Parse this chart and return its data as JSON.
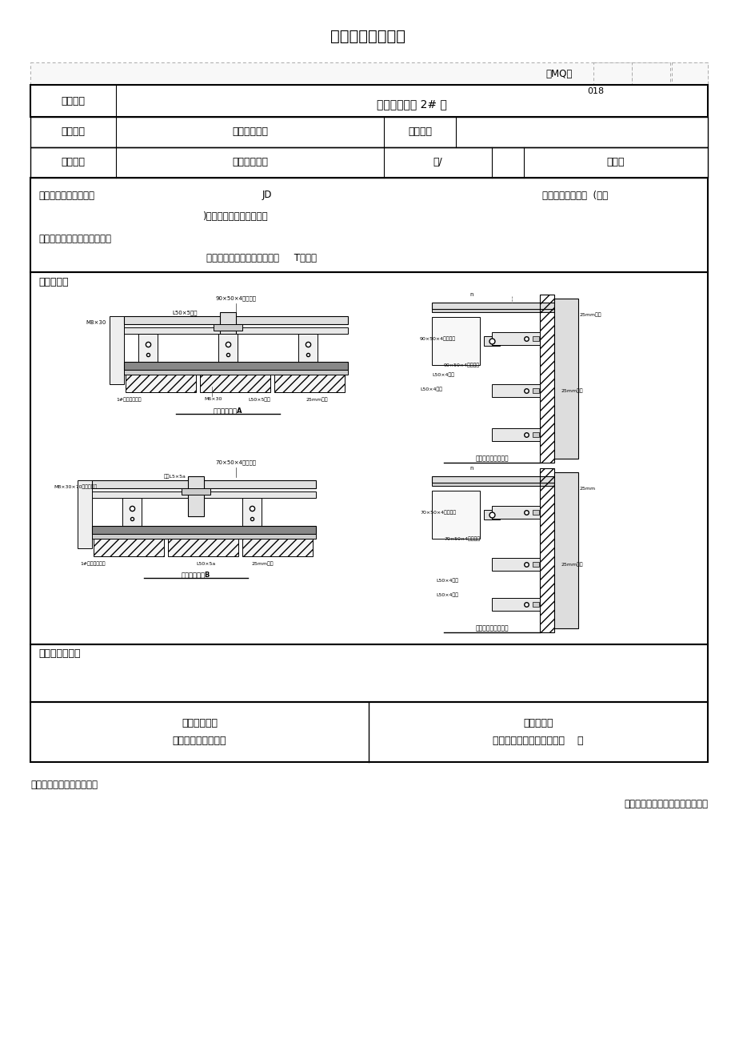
{
  "title": "隐蔽工程验收记录",
  "doc_number_label": "鲁MQ－",
  "doc_number": "018",
  "project_name_label": "工程名称",
  "project_name": "舜奥嘉园南区 2# 楼",
  "inspection_item_label": "隐检项目",
  "inspection_item": "石材幕墙龙骨",
  "inspection_date_label": "隐检日期",
  "inspection_date": "",
  "inspection_location_label": "隐检部位",
  "inspection_location": "商业区北立面",
  "floor_label": "层/",
  "orientation": "北立面",
  "basis_text_1": "隐检依据：施工图图号",
  "basis_jd": "JD",
  "basis_text_2": "，设计变更／洽商  (编号",
  "basis_text_3": ")及有关国家现行标准等。",
  "material_label": "主要材料名称及规格、型号：",
  "material_content": "矩形钢管、不锈钢螺栓、角钢     T型挂件",
  "content_label": "隐检内容：",
  "inspection_opinion_label": "检查验收意见：",
  "construction_unit_label": "施工单位项目",
  "construction_unit_sublabel": "（专业）技术负责人",
  "supervisor_label": "监理工程师",
  "supervisor_sublabel": "（建设单位项目专业负责人    ）",
  "footer_note": "注：本表由施工单位填写。",
  "footer_authority": "山东省建设工程质量监督总站监制",
  "ml": 38,
  "mr": 885,
  "tt": 78
}
